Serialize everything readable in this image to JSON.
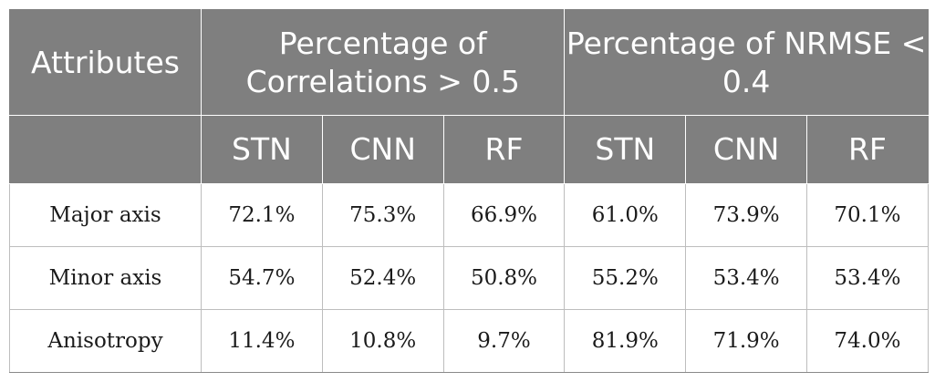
{
  "table": {
    "header": {
      "attributes_label": "Attributes",
      "group_correlation": "Percentage of Correlations > 0.5",
      "group_nrmse": "Percentage of NRMSE < 0.4",
      "sub_columns": [
        "STN",
        "CNN",
        "RF",
        "STN",
        "CNN",
        "RF"
      ]
    },
    "rows": [
      {
        "attribute": "Major axis",
        "values": [
          "72.1%",
          "75.3%",
          "66.9%",
          "61.0%",
          "73.9%",
          "70.1%"
        ]
      },
      {
        "attribute": "Minor axis",
        "values": [
          "54.7%",
          "52.4%",
          "50.8%",
          "55.2%",
          "53.4%",
          "53.4%"
        ]
      },
      {
        "attribute": "Anisotropy",
        "values": [
          "11.4%",
          "10.8%",
          "9.7%",
          "81.9%",
          "71.9%",
          "74.0%"
        ]
      }
    ],
    "colors": {
      "header_background": "#7f7f7f",
      "header_text": "#ffffff",
      "body_text": "#1a1a1a",
      "grid_line": "#bdbdbd"
    }
  }
}
